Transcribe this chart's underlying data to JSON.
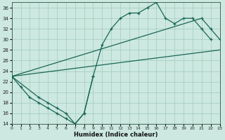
{
  "bg_color": "#cce8e0",
  "grid_color": "#aacfbf",
  "line_color": "#1a6655",
  "xlim": [
    0,
    23
  ],
  "ylim": [
    14,
    37
  ],
  "xticks": [
    0,
    1,
    2,
    3,
    4,
    5,
    6,
    7,
    8,
    9,
    10,
    11,
    12,
    13,
    14,
    15,
    16,
    17,
    18,
    19,
    20,
    21,
    22,
    23
  ],
  "yticks": [
    14,
    16,
    18,
    20,
    22,
    24,
    26,
    28,
    30,
    32,
    34,
    36
  ],
  "xlabel": "Humidex (Indice chaleur)",
  "curve1_x": [
    0,
    1,
    2,
    3,
    4,
    5,
    6,
    7,
    8,
    9,
    10,
    11,
    12,
    13,
    14,
    15,
    16,
    17,
    18,
    19,
    20,
    21,
    22
  ],
  "curve1_y": [
    23,
    21,
    19,
    18,
    17,
    16,
    15,
    14,
    16,
    23,
    29,
    32,
    34,
    35,
    35,
    36,
    37,
    34,
    33,
    34,
    34,
    32,
    30
  ],
  "curve2_x": [
    0,
    21,
    22,
    23
  ],
  "curve2_y": [
    23,
    34,
    32,
    30
  ],
  "curve3_x": [
    0,
    23
  ],
  "curve3_y": [
    23,
    28
  ],
  "curve4_x": [
    0,
    3,
    4,
    5,
    6,
    7,
    8,
    9
  ],
  "curve4_y": [
    23,
    19,
    18,
    17,
    16,
    14,
    16,
    23
  ]
}
